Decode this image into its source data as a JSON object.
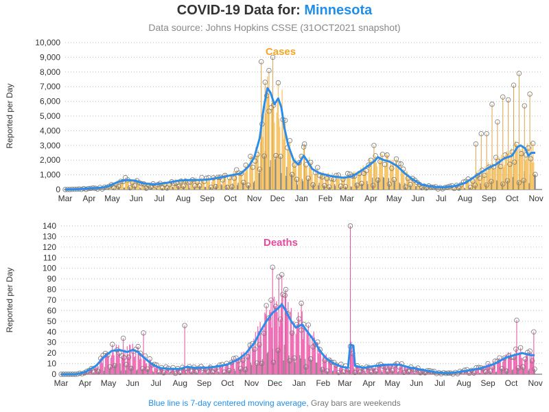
{
  "header": {
    "title_prefix": "COVID-19 Data for:",
    "state": "Minnesota",
    "subtitle": "Data source: Johns Hopkins CSSE (31OCT2021 snapshot)"
  },
  "footnote": {
    "blue_part": "Blue line is 7-day centered moving average,",
    "gray_part": "Gray bars are weekends"
  },
  "colors": {
    "cases_bar": "#f6c66c",
    "deaths_bar": "#ef6fb6",
    "moving_average": "#2b8cea",
    "weekend_bar": "#888888",
    "marker": "#777777"
  },
  "chart_data": [
    {
      "type": "bar",
      "title": "Cases",
      "ylabel": "Reported per Day",
      "ylim": [
        0,
        10000
      ],
      "yticks": [
        "0",
        "1,000",
        "2,000",
        "3,000",
        "4,000",
        "5,000",
        "6,000",
        "7,000",
        "8,000",
        "9,000",
        "10,000"
      ],
      "xticks": [
        "Mar",
        "Apr",
        "May",
        "Jun",
        "Jul",
        "Aug",
        "Sep",
        "Oct",
        "Nov",
        "Dec",
        "Jan",
        "Feb",
        "Mar",
        "Apr",
        "May",
        "Jun",
        "Jul",
        "Aug",
        "Sep",
        "Oct",
        "Nov"
      ],
      "grid": "horizontal dotted",
      "x_start": "2020-03-01",
      "x_end": "2021-10-31",
      "moving_average": {
        "name": "7-day centered moving average",
        "points": [
          [
            "2020-03-01",
            0
          ],
          [
            "2020-03-20",
            30
          ],
          [
            "2020-04-01",
            80
          ],
          [
            "2020-04-15",
            120
          ],
          [
            "2020-04-25",
            200
          ],
          [
            "2020-05-01",
            350
          ],
          [
            "2020-05-10",
            550
          ],
          [
            "2020-05-20",
            650
          ],
          [
            "2020-05-31",
            600
          ],
          [
            "2020-06-10",
            420
          ],
          [
            "2020-06-25",
            350
          ],
          [
            "2020-07-10",
            450
          ],
          [
            "2020-07-25",
            600
          ],
          [
            "2020-08-10",
            650
          ],
          [
            "2020-08-25",
            650
          ],
          [
            "2020-09-05",
            700
          ],
          [
            "2020-09-15",
            800
          ],
          [
            "2020-09-30",
            950
          ],
          [
            "2020-10-15",
            1100
          ],
          [
            "2020-10-25",
            1600
          ],
          [
            "2020-11-01",
            2200
          ],
          [
            "2020-11-08",
            3500
          ],
          [
            "2020-11-13",
            5500
          ],
          [
            "2020-11-18",
            6900
          ],
          [
            "2020-11-22",
            6600
          ],
          [
            "2020-11-27",
            5800
          ],
          [
            "2020-12-02",
            6200
          ],
          [
            "2020-12-06",
            5600
          ],
          [
            "2020-12-10",
            4200
          ],
          [
            "2020-12-15",
            3000
          ],
          [
            "2020-12-22",
            2000
          ],
          [
            "2020-12-28",
            1700
          ],
          [
            "2021-01-04",
            2300
          ],
          [
            "2021-01-08",
            2000
          ],
          [
            "2021-01-15",
            1400
          ],
          [
            "2021-01-25",
            1100
          ],
          [
            "2021-02-10",
            900
          ],
          [
            "2021-02-25",
            800
          ],
          [
            "2021-03-08",
            900
          ],
          [
            "2021-03-20",
            1300
          ],
          [
            "2021-03-28",
            1600
          ],
          [
            "2021-04-05",
            1900
          ],
          [
            "2021-04-10",
            2200
          ],
          [
            "2021-04-18",
            2000
          ],
          [
            "2021-04-25",
            1900
          ],
          [
            "2021-05-05",
            1600
          ],
          [
            "2021-05-15",
            1100
          ],
          [
            "2021-05-25",
            700
          ],
          [
            "2021-06-05",
            350
          ],
          [
            "2021-06-20",
            180
          ],
          [
            "2021-07-05",
            150
          ],
          [
            "2021-07-20",
            250
          ],
          [
            "2021-08-01",
            450
          ],
          [
            "2021-08-10",
            750
          ],
          [
            "2021-08-20",
            1100
          ],
          [
            "2021-09-01",
            1500
          ],
          [
            "2021-09-10",
            1700
          ],
          [
            "2021-09-20",
            2100
          ],
          [
            "2021-10-01",
            2300
          ],
          [
            "2021-10-08",
            2900
          ],
          [
            "2021-10-12",
            3000
          ],
          [
            "2021-10-18",
            2800
          ],
          [
            "2021-10-22",
            2300
          ],
          [
            "2021-10-26",
            2500
          ]
        ]
      },
      "peak_markers": [
        [
          "2020-11-10",
          8700
        ],
        [
          "2020-11-20",
          8100
        ],
        [
          "2020-11-25",
          9000
        ],
        [
          "2020-11-15",
          7300
        ],
        [
          "2021-01-05",
          3100
        ],
        [
          "2021-04-05",
          3000
        ],
        [
          "2021-08-15",
          3100
        ],
        [
          "2021-08-22",
          3800
        ],
        [
          "2021-08-29",
          3800
        ],
        [
          "2021-09-05",
          5800
        ],
        [
          "2021-09-12",
          4600
        ],
        [
          "2021-09-19",
          6300
        ],
        [
          "2021-09-26",
          6100
        ],
        [
          "2021-10-03",
          7100
        ],
        [
          "2021-10-10",
          7900
        ],
        [
          "2021-10-17",
          5700
        ],
        [
          "2021-10-24",
          6500
        ]
      ]
    },
    {
      "type": "bar",
      "title": "Deaths",
      "ylabel": "Reported per Day",
      "ylim": [
        0,
        140
      ],
      "yticks": [
        "0",
        "10",
        "20",
        "30",
        "40",
        "50",
        "60",
        "70",
        "80",
        "90",
        "100",
        "110",
        "120",
        "130",
        "140"
      ],
      "xticks": [
        "Mar",
        "Apr",
        "May",
        "Jun",
        "Jul",
        "Aug",
        "Sep",
        "Oct",
        "Nov",
        "Dec",
        "Jan",
        "Feb",
        "Mar",
        "Apr",
        "May",
        "Jun",
        "Jul",
        "Aug",
        "Sep",
        "Oct",
        "Nov"
      ],
      "grid": "horizontal dotted",
      "x_start": "2020-03-01",
      "x_end": "2021-10-31",
      "moving_average": {
        "name": "7-day centered moving average",
        "points": [
          [
            "2020-03-01",
            0
          ],
          [
            "2020-03-20",
            0
          ],
          [
            "2020-04-01",
            2
          ],
          [
            "2020-04-15",
            8
          ],
          [
            "2020-04-25",
            16
          ],
          [
            "2020-05-05",
            22
          ],
          [
            "2020-05-15",
            23
          ],
          [
            "2020-05-25",
            21
          ],
          [
            "2020-06-01",
            23
          ],
          [
            "2020-06-08",
            21
          ],
          [
            "2020-06-15",
            16
          ],
          [
            "2020-06-25",
            10
          ],
          [
            "2020-07-05",
            6
          ],
          [
            "2020-07-20",
            5
          ],
          [
            "2020-08-01",
            5
          ],
          [
            "2020-08-10",
            7
          ],
          [
            "2020-08-20",
            6
          ],
          [
            "2020-09-01",
            6
          ],
          [
            "2020-09-15",
            7
          ],
          [
            "2020-09-30",
            9
          ],
          [
            "2020-10-15",
            14
          ],
          [
            "2020-10-25",
            20
          ],
          [
            "2020-11-05",
            30
          ],
          [
            "2020-11-12",
            40
          ],
          [
            "2020-11-20",
            50
          ],
          [
            "2020-11-28",
            58
          ],
          [
            "2020-12-05",
            62
          ],
          [
            "2020-12-10",
            66
          ],
          [
            "2020-12-15",
            60
          ],
          [
            "2020-12-22",
            50
          ],
          [
            "2020-12-28",
            44
          ],
          [
            "2021-01-05",
            47
          ],
          [
            "2021-01-12",
            40
          ],
          [
            "2021-01-20",
            32
          ],
          [
            "2021-01-28",
            22
          ],
          [
            "2021-02-05",
            15
          ],
          [
            "2021-02-15",
            10
          ],
          [
            "2021-02-25",
            7
          ],
          [
            "2021-03-05",
            6
          ],
          [
            "2021-03-08",
            28
          ],
          [
            "2021-03-12",
            27
          ],
          [
            "2021-03-14",
            8
          ],
          [
            "2021-03-25",
            6
          ],
          [
            "2021-04-10",
            8
          ],
          [
            "2021-04-25",
            9
          ],
          [
            "2021-05-10",
            9
          ],
          [
            "2021-05-25",
            6
          ],
          [
            "2021-06-10",
            4
          ],
          [
            "2021-06-25",
            2
          ],
          [
            "2021-07-10",
            1
          ],
          [
            "2021-07-25",
            2
          ],
          [
            "2021-08-10",
            4
          ],
          [
            "2021-08-25",
            6
          ],
          [
            "2021-09-10",
            10
          ],
          [
            "2021-09-25",
            16
          ],
          [
            "2021-10-05",
            18
          ],
          [
            "2021-10-15",
            20
          ],
          [
            "2021-10-26",
            18
          ]
        ]
      },
      "peak_markers": [
        [
          "2020-11-28",
          101
        ],
        [
          "2020-12-06",
          92
        ],
        [
          "2020-12-10",
          94
        ],
        [
          "2020-12-15",
          80
        ],
        [
          "2021-03-08",
          140
        ],
        [
          "2020-08-07",
          46
        ],
        [
          "2021-10-08",
          51
        ],
        [
          "2021-10-30",
          40
        ],
        [
          "2020-06-15",
          39
        ],
        [
          "2020-05-20",
          34
        ],
        [
          "2021-01-04",
          67
        ]
      ]
    }
  ]
}
